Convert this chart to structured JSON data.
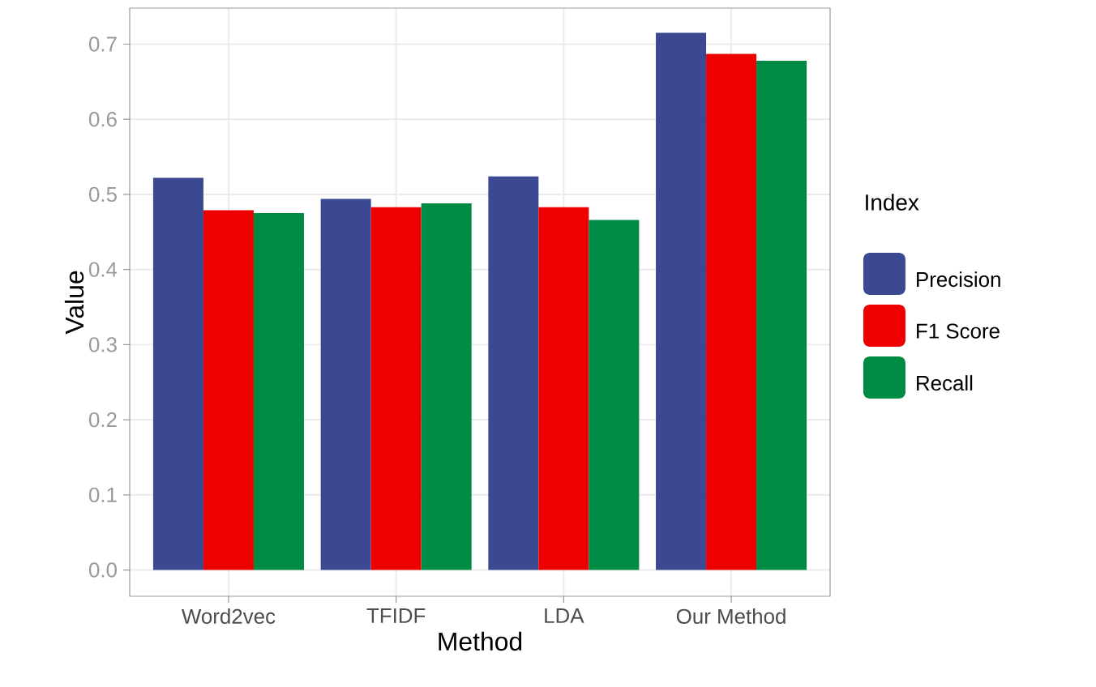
{
  "chart_data": {
    "type": "bar",
    "xlabel": "Method",
    "ylabel": "Value",
    "legend_title": "Index",
    "categories": [
      "Word2vec",
      "TFIDF",
      "LDA",
      "Our Method"
    ],
    "series": [
      {
        "name": "Precision",
        "color": "#3b4992",
        "values": [
          0.522,
          0.494,
          0.524,
          0.715
        ]
      },
      {
        "name": "F1 Score",
        "color": "#ee0000",
        "values": [
          0.479,
          0.483,
          0.483,
          0.687
        ]
      },
      {
        "name": "Recall",
        "color": "#008b45",
        "values": [
          0.475,
          0.488,
          0.466,
          0.678
        ]
      }
    ],
    "ylim": [
      -0.035,
      0.748
    ],
    "yticks": [
      {
        "value": 0,
        "label": "0.0"
      },
      {
        "value": 0.1,
        "label": "0.1"
      },
      {
        "value": 0.2,
        "label": "0.2"
      },
      {
        "value": 0.3,
        "label": "0.3"
      },
      {
        "value": 0.4,
        "label": "0.4"
      },
      {
        "value": 0.5,
        "label": "0.5"
      },
      {
        "value": 0.6,
        "label": "0.6"
      },
      {
        "value": 0.7,
        "label": "0.7"
      }
    ],
    "grid": true,
    "legend": "right"
  }
}
